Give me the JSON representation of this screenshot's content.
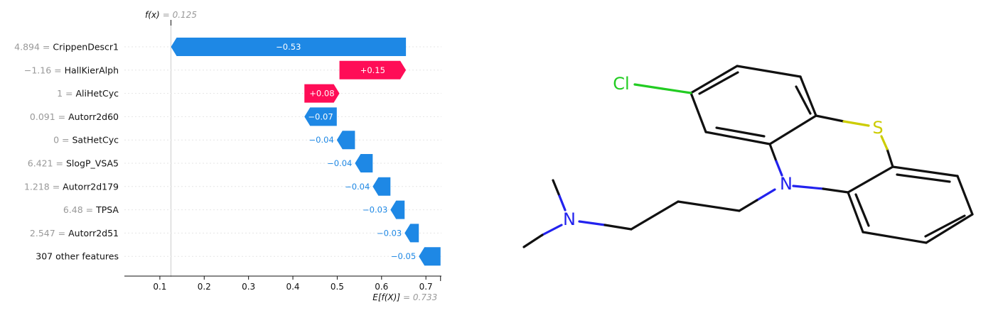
{
  "chart_data": {
    "type": "waterfall",
    "fx_label": "f(x)",
    "fx_value": "0.125",
    "ex_label": "E[f(X)]",
    "ex_value": "0.733",
    "base_value": 0.733,
    "final_value": 0.125,
    "xlim": [
      0.02,
      0.735
    ],
    "xticks": [
      "0.1",
      "0.2",
      "0.3",
      "0.4",
      "0.5",
      "0.6",
      "0.7"
    ],
    "colors": {
      "positive": "#FF0D57",
      "negative": "#1E88E5",
      "mean_line": "#999999"
    },
    "features": [
      {
        "value_label": "4.894 =",
        "name": "CrippenDescr1",
        "contribution": -0.53,
        "label": "−0.53",
        "start": 0.655,
        "end": 0.125
      },
      {
        "value_label": "−1.16 =",
        "name": "HallKierAlph",
        "contribution": 0.15,
        "label": "+0.15",
        "start": 0.505,
        "end": 0.655
      },
      {
        "value_label": "1 =",
        "name": "AliHetCyc",
        "contribution": 0.08,
        "label": "+0.08",
        "start": 0.426,
        "end": 0.505
      },
      {
        "value_label": "0.091 =",
        "name": "Autorr2d60",
        "contribution": -0.07,
        "label": "−0.07",
        "start": 0.499,
        "end": 0.426
      },
      {
        "value_label": "0 =",
        "name": "SatHetCyc",
        "contribution": -0.04,
        "label": "−0.04",
        "start": 0.54,
        "end": 0.499
      },
      {
        "value_label": "6.421 =",
        "name": "SlogP_VSA5",
        "contribution": -0.04,
        "label": "−0.04",
        "start": 0.58,
        "end": 0.54
      },
      {
        "value_label": "1.218 =",
        "name": "Autorr2d179",
        "contribution": -0.04,
        "label": "−0.04",
        "start": 0.62,
        "end": 0.58
      },
      {
        "value_label": "6.48 =",
        "name": "TPSA",
        "contribution": -0.03,
        "label": "−0.03",
        "start": 0.652,
        "end": 0.62
      },
      {
        "value_label": "2.547 =",
        "name": "Autorr2d51",
        "contribution": -0.03,
        "label": "−0.03",
        "start": 0.684,
        "end": 0.652
      },
      {
        "value_label": "",
        "name": "307 other features",
        "contribution": -0.05,
        "label": "−0.05",
        "start": 0.733,
        "end": 0.684
      }
    ]
  },
  "molecule": {
    "atom_labels": {
      "chlorine": "Cl",
      "sulfur": "S",
      "ring_nitrogen": "N",
      "amine_nitrogen": "N"
    },
    "colors": {
      "bond": "#111111",
      "chlorine": "#22CC22",
      "sulfur": "#CCCC00",
      "nitrogen": "#2222EE"
    }
  }
}
